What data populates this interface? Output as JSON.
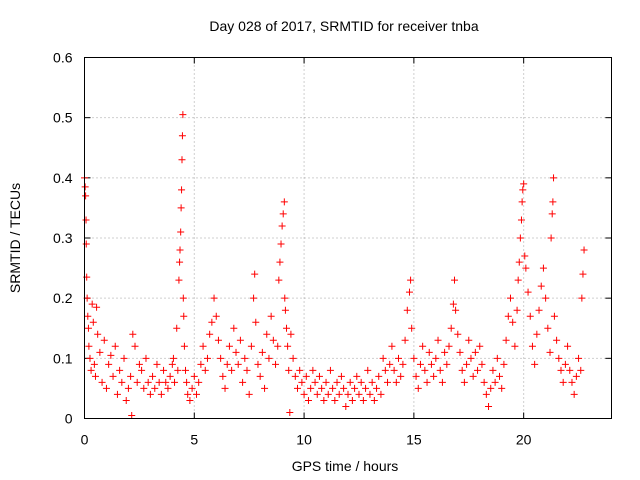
{
  "chart_data": {
    "type": "scatter",
    "title": "Day 028 of 2017, SRMTID for receiver tnba",
    "xlabel": "GPS time / hours",
    "ylabel": "SRMTID / TECUs",
    "xlim": [
      0,
      24
    ],
    "ylim": [
      0,
      0.6
    ],
    "xticks": [
      0,
      5,
      10,
      15,
      20
    ],
    "xtick_labels": [
      "0",
      "5",
      "10",
      "15",
      "20"
    ],
    "yticks": [
      0,
      0.1,
      0.2,
      0.3,
      0.4,
      0.5,
      0.6
    ],
    "ytick_labels": [
      "0",
      "0.1",
      "0.2",
      "0.3",
      "0.4",
      "0.5",
      "0.6"
    ],
    "grid": true,
    "marker": "plus",
    "color": "#ff0000",
    "series": [
      {
        "name": "SRMTID",
        "points": [
          [
            0.0,
            0.4
          ],
          [
            0.03,
            0.385
          ],
          [
            0.05,
            0.37
          ],
          [
            0.07,
            0.33
          ],
          [
            0.08,
            0.29
          ],
          [
            0.1,
            0.235
          ],
          [
            0.12,
            0.2
          ],
          [
            0.15,
            0.17
          ],
          [
            0.18,
            0.15
          ],
          [
            0.2,
            0.12
          ],
          [
            0.25,
            0.1
          ],
          [
            0.3,
            0.08
          ],
          [
            0.35,
            0.19
          ],
          [
            0.4,
            0.16
          ],
          [
            0.45,
            0.09
          ],
          [
            0.5,
            0.07
          ],
          [
            0.55,
            0.185
          ],
          [
            0.6,
            0.14
          ],
          [
            0.7,
            0.11
          ],
          [
            0.8,
            0.06
          ],
          [
            0.9,
            0.13
          ],
          [
            1.0,
            0.05
          ],
          [
            1.1,
            0.09
          ],
          [
            1.2,
            0.105
          ],
          [
            1.3,
            0.07
          ],
          [
            1.4,
            0.12
          ],
          [
            1.5,
            0.04
          ],
          [
            1.6,
            0.08
          ],
          [
            1.7,
            0.06
          ],
          [
            1.8,
            0.1
          ],
          [
            1.9,
            0.03
          ],
          [
            2.0,
            0.05
          ],
          [
            2.1,
            0.07
          ],
          [
            2.15,
            0.005
          ],
          [
            2.2,
            0.14
          ],
          [
            2.3,
            0.12
          ],
          [
            2.4,
            0.06
          ],
          [
            2.5,
            0.09
          ],
          [
            2.6,
            0.08
          ],
          [
            2.7,
            0.05
          ],
          [
            2.8,
            0.1
          ],
          [
            2.9,
            0.06
          ],
          [
            3.0,
            0.04
          ],
          [
            3.1,
            0.07
          ],
          [
            3.2,
            0.05
          ],
          [
            3.3,
            0.09
          ],
          [
            3.4,
            0.06
          ],
          [
            3.5,
            0.04
          ],
          [
            3.6,
            0.08
          ],
          [
            3.7,
            0.06
          ],
          [
            3.8,
            0.05
          ],
          [
            3.9,
            0.07
          ],
          [
            4.0,
            0.09
          ],
          [
            4.05,
            0.1
          ],
          [
            4.1,
            0.06
          ],
          [
            4.2,
            0.15
          ],
          [
            4.25,
            0.08
          ],
          [
            4.3,
            0.23
          ],
          [
            4.33,
            0.26
          ],
          [
            4.35,
            0.28
          ],
          [
            4.38,
            0.31
          ],
          [
            4.4,
            0.35
          ],
          [
            4.42,
            0.38
          ],
          [
            4.44,
            0.43
          ],
          [
            4.46,
            0.47
          ],
          [
            4.48,
            0.505
          ],
          [
            4.5,
            0.2
          ],
          [
            4.52,
            0.17
          ],
          [
            4.55,
            0.12
          ],
          [
            4.6,
            0.08
          ],
          [
            4.65,
            0.06
          ],
          [
            4.7,
            0.04
          ],
          [
            4.8,
            0.03
          ],
          [
            4.9,
            0.05
          ],
          [
            5.0,
            0.07
          ],
          [
            5.1,
            0.04
          ],
          [
            5.2,
            0.06
          ],
          [
            5.3,
            0.09
          ],
          [
            5.4,
            0.12
          ],
          [
            5.5,
            0.08
          ],
          [
            5.6,
            0.1
          ],
          [
            5.7,
            0.14
          ],
          [
            5.8,
            0.16
          ],
          [
            5.9,
            0.2
          ],
          [
            6.0,
            0.17
          ],
          [
            6.1,
            0.13
          ],
          [
            6.2,
            0.1
          ],
          [
            6.3,
            0.07
          ],
          [
            6.4,
            0.05
          ],
          [
            6.5,
            0.09
          ],
          [
            6.6,
            0.12
          ],
          [
            6.7,
            0.08
          ],
          [
            6.8,
            0.15
          ],
          [
            6.9,
            0.11
          ],
          [
            7.0,
            0.09
          ],
          [
            7.1,
            0.13
          ],
          [
            7.2,
            0.06
          ],
          [
            7.3,
            0.1
          ],
          [
            7.4,
            0.08
          ],
          [
            7.5,
            0.04
          ],
          [
            7.6,
            0.12
          ],
          [
            7.7,
            0.2
          ],
          [
            7.75,
            0.24
          ],
          [
            7.8,
            0.16
          ],
          [
            7.9,
            0.09
          ],
          [
            8.0,
            0.07
          ],
          [
            8.1,
            0.11
          ],
          [
            8.2,
            0.05
          ],
          [
            8.3,
            0.14
          ],
          [
            8.4,
            0.1
          ],
          [
            8.5,
            0.17
          ],
          [
            8.6,
            0.13
          ],
          [
            8.7,
            0.09
          ],
          [
            8.8,
            0.12
          ],
          [
            8.85,
            0.23
          ],
          [
            8.9,
            0.26
          ],
          [
            8.95,
            0.29
          ],
          [
            9.0,
            0.32
          ],
          [
            9.05,
            0.34
          ],
          [
            9.1,
            0.36
          ],
          [
            9.12,
            0.2
          ],
          [
            9.15,
            0.18
          ],
          [
            9.2,
            0.15
          ],
          [
            9.25,
            0.12
          ],
          [
            9.3,
            0.08
          ],
          [
            9.35,
            0.01
          ],
          [
            9.4,
            0.14
          ],
          [
            9.5,
            0.1
          ],
          [
            9.6,
            0.07
          ],
          [
            9.7,
            0.05
          ],
          [
            9.8,
            0.08
          ],
          [
            9.9,
            0.06
          ],
          [
            10.0,
            0.04
          ],
          [
            10.1,
            0.07
          ],
          [
            10.2,
            0.03
          ],
          [
            10.3,
            0.05
          ],
          [
            10.4,
            0.08
          ],
          [
            10.5,
            0.06
          ],
          [
            10.6,
            0.04
          ],
          [
            10.7,
            0.07
          ],
          [
            10.8,
            0.05
          ],
          [
            10.9,
            0.03
          ],
          [
            11.0,
            0.06
          ],
          [
            11.1,
            0.04
          ],
          [
            11.2,
            0.08
          ],
          [
            11.3,
            0.05
          ],
          [
            11.4,
            0.03
          ],
          [
            11.5,
            0.06
          ],
          [
            11.6,
            0.04
          ],
          [
            11.7,
            0.07
          ],
          [
            11.8,
            0.05
          ],
          [
            11.9,
            0.02
          ],
          [
            12.0,
            0.04
          ],
          [
            12.1,
            0.06
          ],
          [
            12.2,
            0.03
          ],
          [
            12.3,
            0.05
          ],
          [
            12.4,
            0.07
          ],
          [
            12.5,
            0.04
          ],
          [
            12.6,
            0.06
          ],
          [
            12.7,
            0.03
          ],
          [
            12.8,
            0.05
          ],
          [
            12.9,
            0.08
          ],
          [
            13.0,
            0.04
          ],
          [
            13.1,
            0.06
          ],
          [
            13.2,
            0.03
          ],
          [
            13.3,
            0.05
          ],
          [
            13.4,
            0.07
          ],
          [
            13.5,
            0.04
          ],
          [
            13.6,
            0.1
          ],
          [
            13.7,
            0.08
          ],
          [
            13.8,
            0.06
          ],
          [
            13.9,
            0.09
          ],
          [
            14.0,
            0.12
          ],
          [
            14.1,
            0.08
          ],
          [
            14.2,
            0.06
          ],
          [
            14.3,
            0.1
          ],
          [
            14.4,
            0.07
          ],
          [
            14.5,
            0.09
          ],
          [
            14.6,
            0.13
          ],
          [
            14.7,
            0.18
          ],
          [
            14.8,
            0.21
          ],
          [
            14.85,
            0.23
          ],
          [
            14.9,
            0.15
          ],
          [
            15.0,
            0.1
          ],
          [
            15.1,
            0.07
          ],
          [
            15.2,
            0.05
          ],
          [
            15.3,
            0.09
          ],
          [
            15.4,
            0.12
          ],
          [
            15.5,
            0.08
          ],
          [
            15.6,
            0.06
          ],
          [
            15.7,
            0.11
          ],
          [
            15.8,
            0.09
          ],
          [
            15.9,
            0.07
          ],
          [
            16.0,
            0.1
          ],
          [
            16.1,
            0.13
          ],
          [
            16.2,
            0.08
          ],
          [
            16.3,
            0.06
          ],
          [
            16.4,
            0.11
          ],
          [
            16.5,
            0.09
          ],
          [
            16.6,
            0.12
          ],
          [
            16.7,
            0.15
          ],
          [
            16.8,
            0.19
          ],
          [
            16.85,
            0.23
          ],
          [
            16.9,
            0.18
          ],
          [
            17.0,
            0.14
          ],
          [
            17.1,
            0.11
          ],
          [
            17.2,
            0.08
          ],
          [
            17.3,
            0.06
          ],
          [
            17.4,
            0.09
          ],
          [
            17.5,
            0.13
          ],
          [
            17.6,
            0.1
          ],
          [
            17.7,
            0.07
          ],
          [
            17.8,
            0.11
          ],
          [
            17.9,
            0.08
          ],
          [
            18.0,
            0.12
          ],
          [
            18.1,
            0.09
          ],
          [
            18.2,
            0.06
          ],
          [
            18.3,
            0.04
          ],
          [
            18.4,
            0.02
          ],
          [
            18.5,
            0.05
          ],
          [
            18.6,
            0.08
          ],
          [
            18.7,
            0.06
          ],
          [
            18.8,
            0.1
          ],
          [
            18.9,
            0.07
          ],
          [
            19.0,
            0.05
          ],
          [
            19.1,
            0.09
          ],
          [
            19.2,
            0.13
          ],
          [
            19.3,
            0.17
          ],
          [
            19.4,
            0.2
          ],
          [
            19.5,
            0.16
          ],
          [
            19.6,
            0.12
          ],
          [
            19.7,
            0.18
          ],
          [
            19.75,
            0.23
          ],
          [
            19.8,
            0.26
          ],
          [
            19.85,
            0.3
          ],
          [
            19.9,
            0.33
          ],
          [
            19.93,
            0.36
          ],
          [
            19.96,
            0.38
          ],
          [
            20.0,
            0.39
          ],
          [
            20.05,
            0.27
          ],
          [
            20.1,
            0.25
          ],
          [
            20.2,
            0.21
          ],
          [
            20.3,
            0.17
          ],
          [
            20.4,
            0.12
          ],
          [
            20.5,
            0.09
          ],
          [
            20.6,
            0.14
          ],
          [
            20.7,
            0.18
          ],
          [
            20.8,
            0.22
          ],
          [
            20.9,
            0.25
          ],
          [
            21.0,
            0.2
          ],
          [
            21.1,
            0.15
          ],
          [
            21.2,
            0.11
          ],
          [
            21.25,
            0.3
          ],
          [
            21.3,
            0.34
          ],
          [
            21.33,
            0.36
          ],
          [
            21.36,
            0.4
          ],
          [
            21.4,
            0.17
          ],
          [
            21.5,
            0.13
          ],
          [
            21.6,
            0.1
          ],
          [
            21.7,
            0.08
          ],
          [
            21.8,
            0.06
          ],
          [
            21.9,
            0.09
          ],
          [
            22.0,
            0.12
          ],
          [
            22.1,
            0.08
          ],
          [
            22.2,
            0.06
          ],
          [
            22.3,
            0.04
          ],
          [
            22.4,
            0.07
          ],
          [
            22.5,
            0.1
          ],
          [
            22.6,
            0.08
          ],
          [
            22.65,
            0.2
          ],
          [
            22.7,
            0.24
          ],
          [
            22.75,
            0.28
          ]
        ]
      }
    ]
  }
}
